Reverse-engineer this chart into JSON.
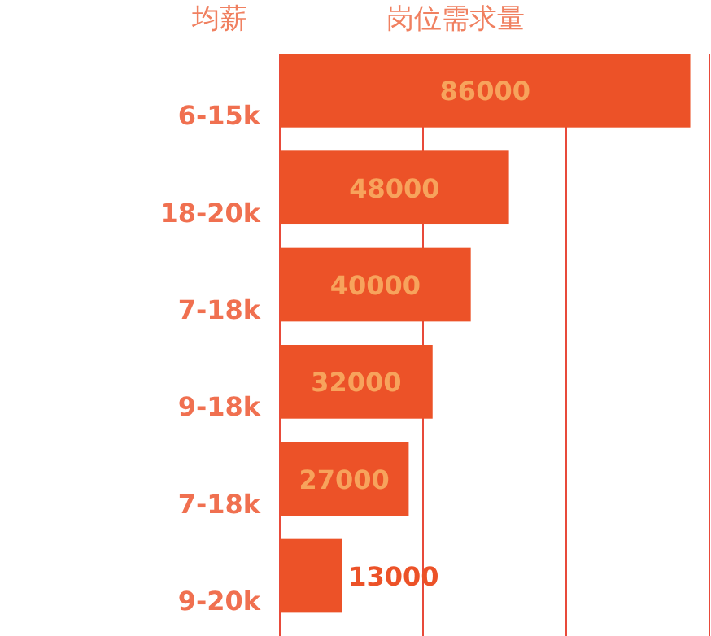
{
  "chart_data": {
    "type": "bar",
    "orientation": "horizontal",
    "xlabel": "岗位需求量",
    "ylabel": "均薪",
    "categories": [
      "6-15k",
      "18-20k",
      "7-18k",
      "9-18k",
      "7-18k",
      "9-20k"
    ],
    "values": [
      86000,
      48000,
      40000,
      32000,
      27000,
      13000
    ],
    "color": "#ec5228",
    "data_labels": true,
    "grid": "x",
    "xlim": [
      0,
      90000
    ],
    "xticks": [
      {
        "value": 30000,
        "label": null
      },
      {
        "value": 60000,
        "label": null
      },
      {
        "value": 90000,
        "label": null
      }
    ]
  }
}
